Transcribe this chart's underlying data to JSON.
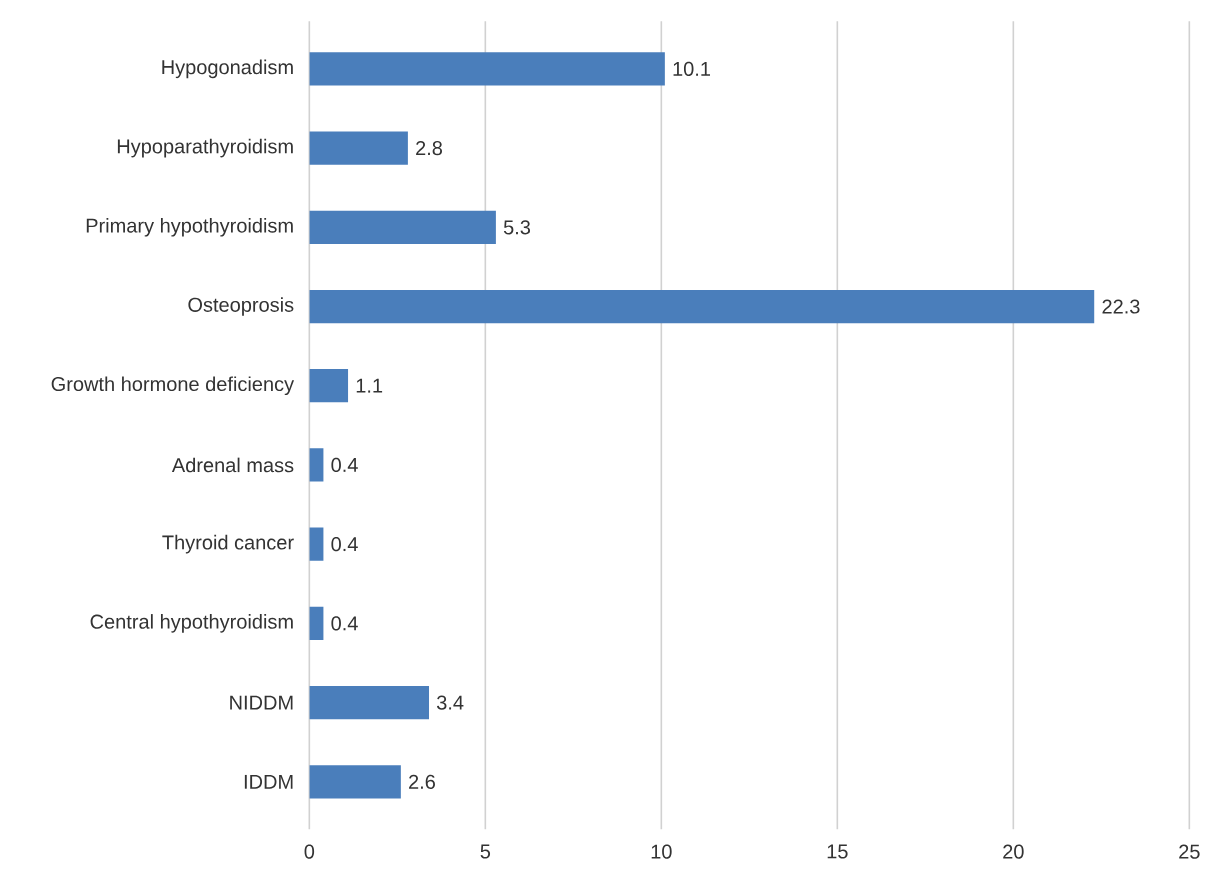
{
  "chart_data": {
    "type": "bar",
    "orientation": "horizontal",
    "categories": [
      "Hypogonadism",
      "Hypoparathyroidism",
      "Primary hypothyroidism",
      "Osteoprosis",
      "Growth hormone deficiency",
      "Adrenal mass",
      "Thyroid cancer",
      "Central hypothyroidism",
      "NIDDM",
      "IDDM"
    ],
    "values": [
      10.1,
      2.8,
      5.3,
      22.3,
      1.1,
      0.4,
      0.4,
      0.4,
      3.4,
      2.6
    ],
    "color": "#4a7ebb",
    "xlim": [
      0,
      25
    ],
    "xticks": [
      0,
      5,
      10,
      15,
      20,
      25
    ],
    "grid": "x",
    "data_labels": true
  }
}
